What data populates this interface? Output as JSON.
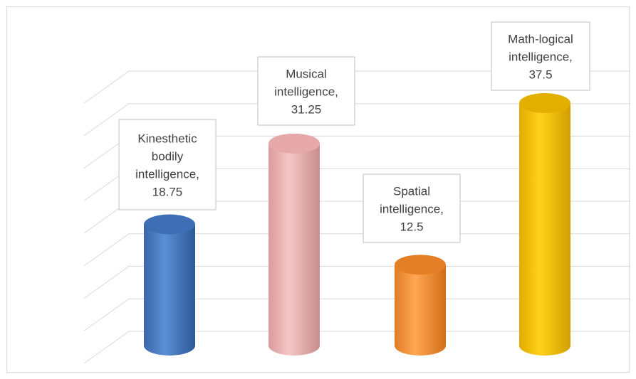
{
  "chart_data": {
    "type": "bar",
    "style": "3d-cylinder",
    "categories": [
      "Kinesthetic bodily intelligence",
      "Musical intelligence",
      "Spatial intelligence",
      "Math-logical intelligence"
    ],
    "values": [
      18.75,
      31.25,
      12.5,
      37.5
    ],
    "data_labels": [
      [
        "Kinesthetic",
        "bodily",
        "intelligence,",
        "18.75"
      ],
      [
        "Musical",
        "intelligence,",
        "31.25"
      ],
      [
        "Spatial",
        "intelligence,",
        "12.5"
      ],
      [
        "Math-logical",
        "intelligence,",
        "37.5"
      ]
    ],
    "colors": [
      "#4a7cc4",
      "#efb5b5",
      "#f59640",
      "#f9c500"
    ],
    "ylim": [
      0,
      40
    ],
    "grid": true,
    "legend": "none",
    "title": "",
    "xlabel": "",
    "ylabel": ""
  }
}
